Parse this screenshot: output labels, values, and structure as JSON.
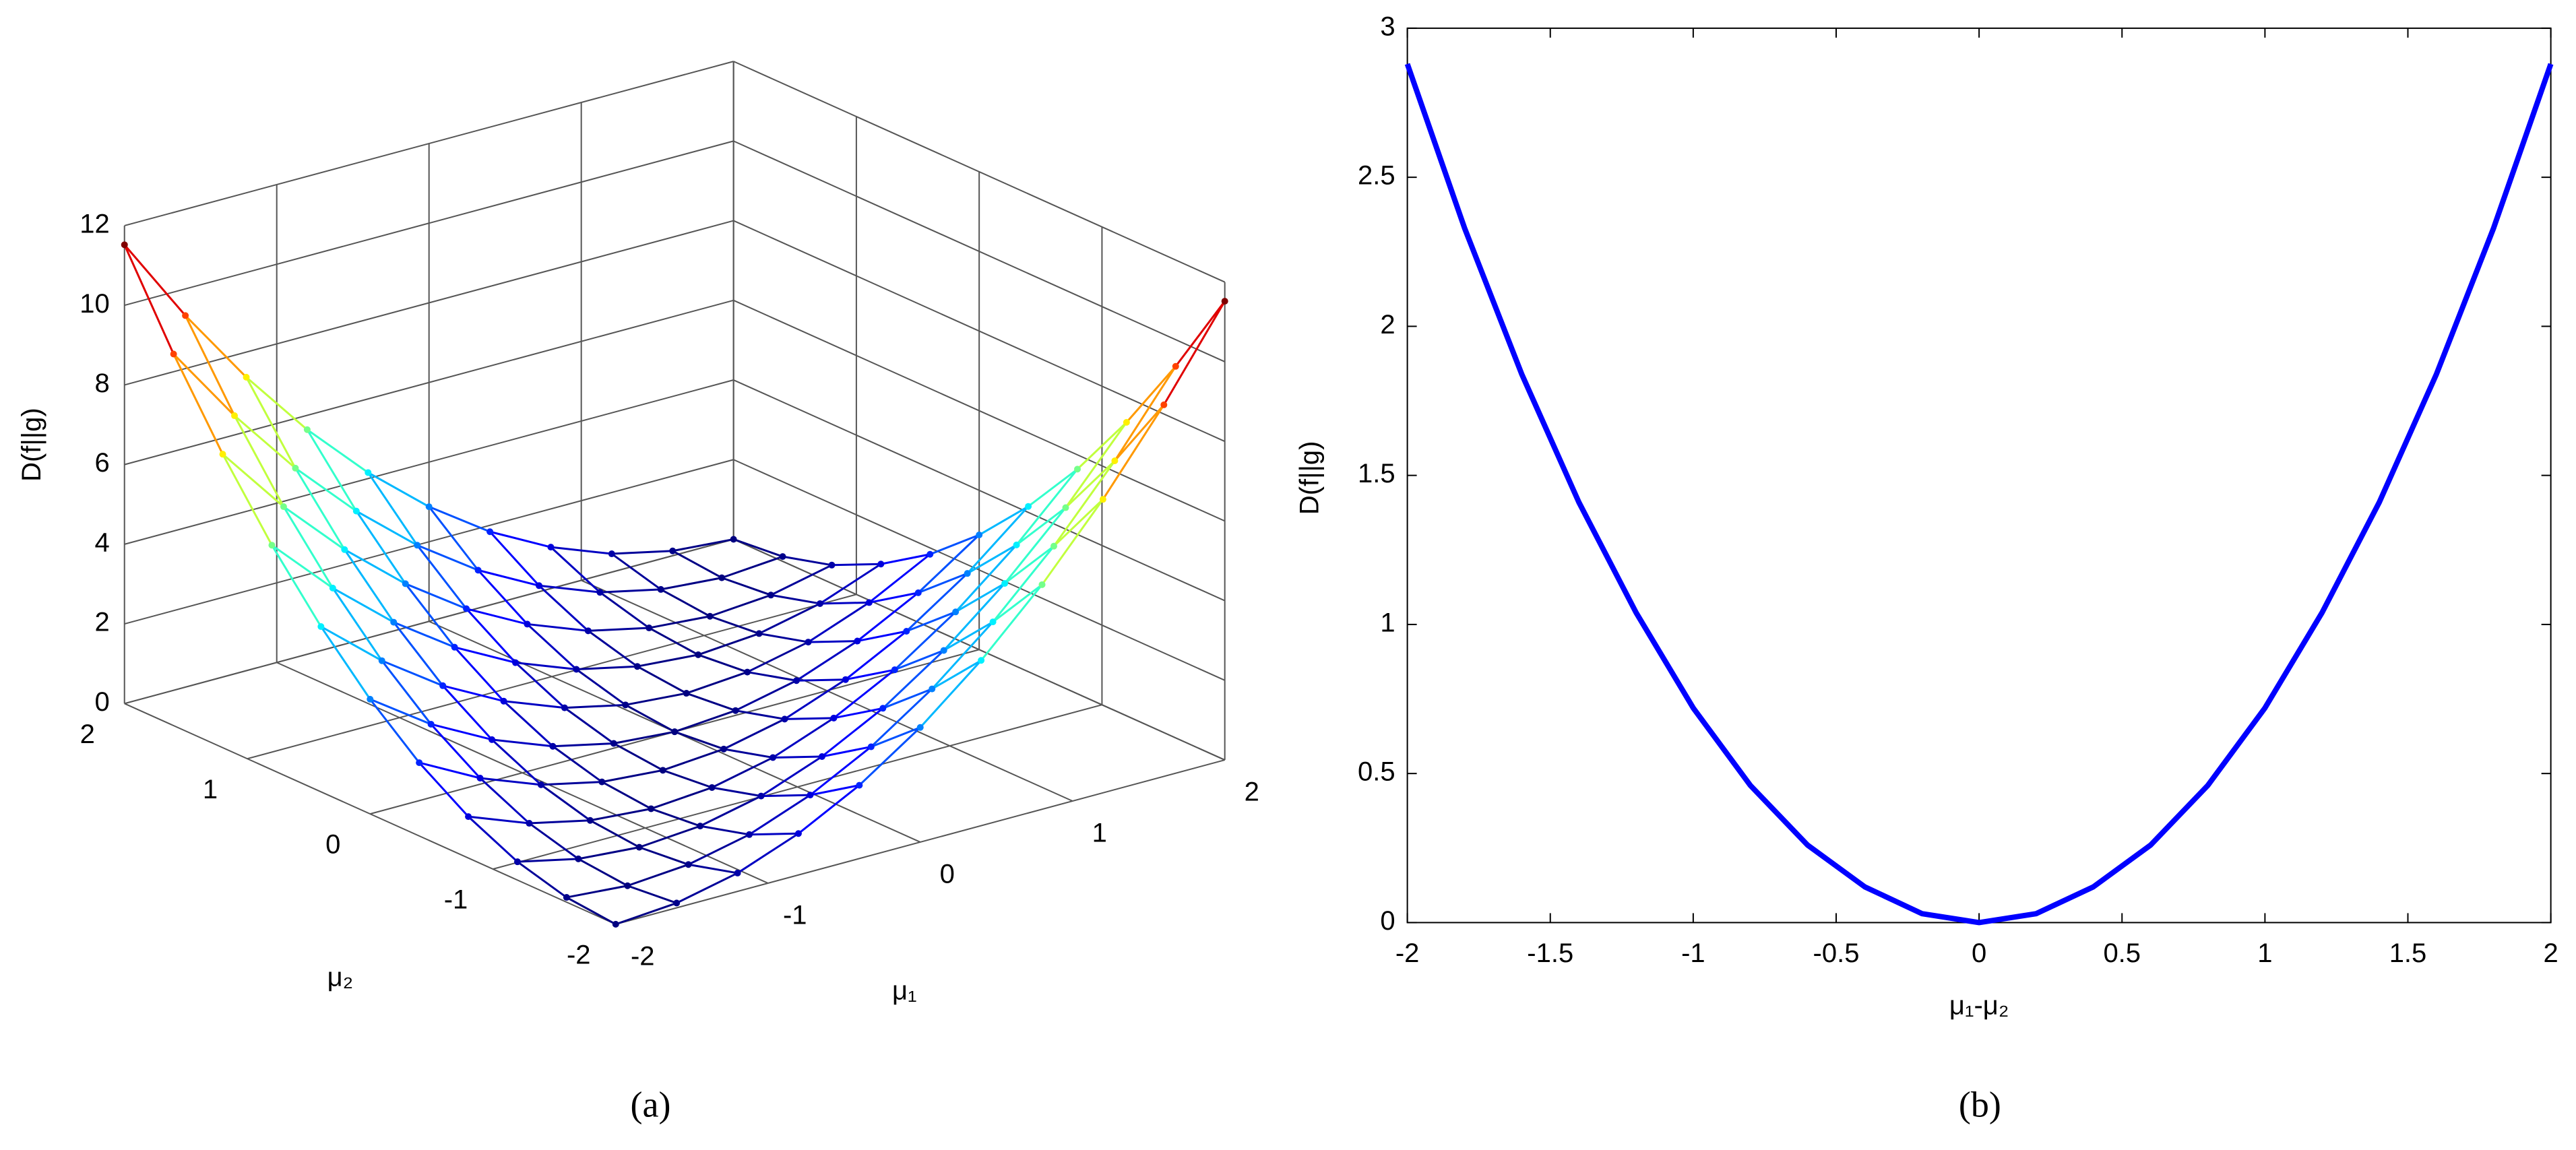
{
  "chart_data": [
    {
      "type": "surface",
      "caption": "(a)",
      "xlabel": "μ₁",
      "ylabel": "μ₂",
      "zlabel": "D(f||g)",
      "x": [
        -2,
        -1.6,
        -1.2,
        -0.8,
        -0.4,
        0,
        0.4,
        0.8,
        1.2,
        1.6,
        2
      ],
      "y": [
        -2,
        -1.6,
        -1.2,
        -0.8,
        -0.4,
        0,
        0.4,
        0.8,
        1.2,
        1.6,
        2
      ],
      "z": [
        [
          0,
          0.12,
          0.46,
          1.04,
          1.84,
          2.88,
          4.15,
          5.64,
          7.37,
          9.33,
          11.52
        ],
        [
          0.12,
          0,
          0.12,
          0.46,
          1.04,
          1.84,
          2.88,
          4.15,
          5.64,
          7.37,
          9.33
        ],
        [
          0.46,
          0.12,
          0,
          0.12,
          0.46,
          1.04,
          1.84,
          2.88,
          4.15,
          5.64,
          7.37
        ],
        [
          1.04,
          0.46,
          0.12,
          0,
          0.12,
          0.46,
          1.04,
          1.84,
          2.88,
          4.15,
          5.64
        ],
        [
          1.84,
          1.04,
          0.46,
          0.12,
          0,
          0.12,
          0.46,
          1.04,
          1.84,
          2.88,
          4.15
        ],
        [
          2.88,
          1.84,
          1.04,
          0.46,
          0.12,
          0,
          0.12,
          0.46,
          1.04,
          1.84,
          2.88
        ],
        [
          4.15,
          2.88,
          1.84,
          1.04,
          0.46,
          0.12,
          0,
          0.12,
          0.46,
          1.04,
          1.84
        ],
        [
          5.64,
          4.15,
          2.88,
          1.84,
          1.04,
          0.46,
          0.12,
          0,
          0.12,
          0.46,
          1.04
        ],
        [
          7.37,
          5.64,
          4.15,
          2.88,
          1.84,
          1.04,
          0.46,
          0.12,
          0,
          0.12,
          0.46
        ],
        [
          9.33,
          7.37,
          5.64,
          4.15,
          2.88,
          1.84,
          1.04,
          0.46,
          0.12,
          0,
          0.12
        ],
        [
          11.52,
          9.33,
          7.37,
          5.64,
          4.15,
          2.88,
          1.84,
          1.04,
          0.46,
          0.12,
          0
        ]
      ],
      "xlim": [
        -2,
        2
      ],
      "ylim": [
        -2,
        2
      ],
      "zlim": [
        0,
        12
      ],
      "xticks": [
        -2,
        -1,
        0,
        1,
        2
      ],
      "yticks": [
        -2,
        -1,
        0,
        1,
        2
      ],
      "zticks": [
        0,
        2,
        4,
        6,
        8,
        10,
        12
      ],
      "colormap": "jet",
      "grid": true
    },
    {
      "type": "line",
      "caption": "(b)",
      "xlabel": "μ₁-μ₂",
      "ylabel": "D(f||g)",
      "x": [
        -2,
        -1.8,
        -1.6,
        -1.4,
        -1.2,
        -1,
        -0.8,
        -0.6,
        -0.4,
        -0.2,
        0,
        0.2,
        0.4,
        0.6,
        0.8,
        1,
        1.2,
        1.4,
        1.6,
        1.8,
        2
      ],
      "series": [
        {
          "name": "D(f||g)",
          "color": "#0000ff",
          "values": [
            2.88,
            2.33,
            1.84,
            1.41,
            1.04,
            0.72,
            0.46,
            0.26,
            0.12,
            0.03,
            0,
            0.03,
            0.12,
            0.26,
            0.46,
            0.72,
            1.04,
            1.41,
            1.84,
            2.33,
            2.88
          ]
        }
      ],
      "xlim": [
        -2,
        2
      ],
      "ylim": [
        0,
        3
      ],
      "xticks": [
        -2,
        -1.5,
        -1,
        -0.5,
        0,
        0.5,
        1,
        1.5,
        2
      ],
      "yticks": [
        0,
        0.5,
        1,
        1.5,
        2,
        2.5,
        3
      ],
      "grid": false
    }
  ]
}
